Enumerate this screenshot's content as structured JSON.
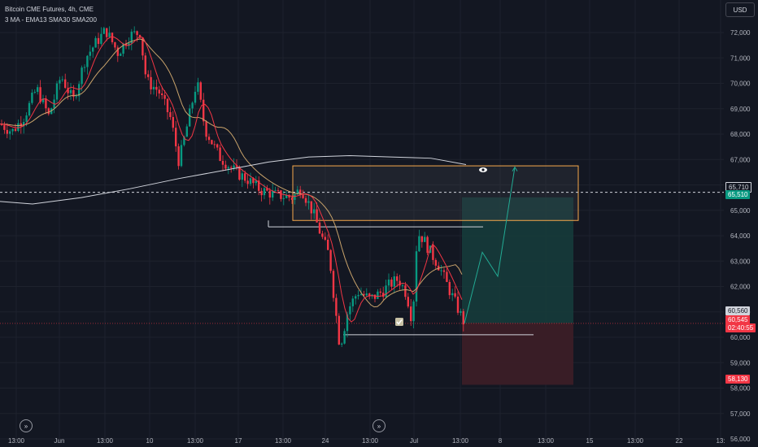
{
  "legend": {
    "title": "Bitcoin CME Futures, 4h, CME",
    "indicators": "3 MA - EMA13 SMA30 SMA200"
  },
  "currency_button": "USD",
  "price_axis": {
    "ticks": [
      "72,000",
      "71,000",
      "70,000",
      "69,000",
      "68,000",
      "67,000",
      "66,000",
      "65,000",
      "64,000",
      "63,000",
      "62,000",
      "61,000",
      "60,000",
      "59,000",
      "58,000",
      "57,000",
      "56,000"
    ],
    "tags": {
      "dashed_level": "65,710",
      "target": "65,510",
      "last_price": "60,560",
      "current_price": "60,545",
      "countdown": "02:40:55",
      "stop": "58,130"
    }
  },
  "time_axis": {
    "ticks": [
      "13:00",
      "Jun",
      "13:00",
      "10",
      "13:00",
      "17",
      "13:00",
      "24",
      "13:00",
      "Jul",
      "13:00",
      "8",
      "13:00",
      "15",
      "13:00",
      "22",
      "13:"
    ]
  },
  "colors": {
    "background": "#131722",
    "candle_up": "#089981",
    "candle_down": "#f23645",
    "ema13": "#f23645",
    "sma30": "#c9a36b",
    "sma200": "#d1d4dc",
    "zone_border": "#f7a94b",
    "target_zone": "#163b3b",
    "stop_zone": "#3b1e27",
    "projection": "#22ab94"
  },
  "icons": {
    "eye": "eye-icon",
    "check": "checkmark-icon",
    "scroll_left": "double-chevron-right-icon",
    "scroll_right": "double-chevron-right-icon"
  }
}
